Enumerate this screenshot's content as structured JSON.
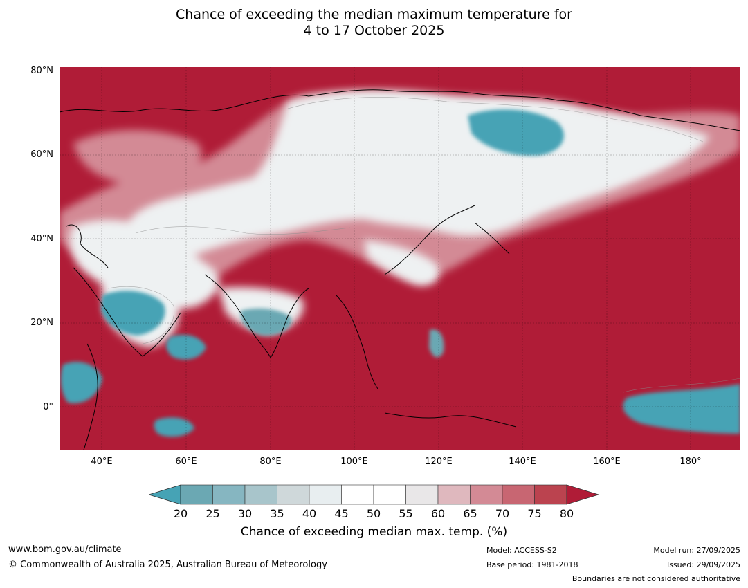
{
  "title": {
    "line1": "Chance of exceeding the median maximum temperature for",
    "line2": "4 to 17 October 2025"
  },
  "map": {
    "lat_labels": [
      "80°N",
      "60°N",
      "40°N",
      "20°N",
      "0°"
    ],
    "lon_labels": [
      "40°E",
      "60°E",
      "80°E",
      "100°E",
      "120°E",
      "140°E",
      "160°E",
      "180°"
    ],
    "regions": [
      {
        "name": "Siberia near-normal zone",
        "class": "50-55"
      },
      {
        "name": "Eastern Siberia cool anomaly",
        "class": "20-25"
      },
      {
        "name": "Arabian Peninsula cool anomaly",
        "class": "20-25"
      },
      {
        "name": "Southern India cool anomaly",
        "class": "25-30"
      },
      {
        "name": "Equatorial Pacific cool anomaly",
        "class": "20-25"
      },
      {
        "name": "Indian Ocean cool patch",
        "class": "20-25"
      },
      {
        "name": "East Africa cool patch",
        "class": "20-25"
      },
      {
        "name": "Philippines cool patch",
        "class": "25-30"
      }
    ]
  },
  "colorbar": {
    "ticks": [
      "20",
      "25",
      "30",
      "35",
      "40",
      "45",
      "50",
      "55",
      "60",
      "65",
      "70",
      "75",
      "80"
    ],
    "colors": [
      "#6ba8b3",
      "#86b6c1",
      "#a8c5cb",
      "#cfd8da",
      "#e8eef0",
      "#ffffff",
      "#ffffff",
      "#e9e7e8",
      "#dfb8be",
      "#d38a95",
      "#c86672",
      "#bb434f"
    ],
    "under_color": "#46a3b5",
    "over_color": "#b01c37",
    "label": "Chance of exceeding median max. temp. (%)"
  },
  "colors": {
    "hot": "#b01c37",
    "cool": "#46a3b5",
    "neutral": "#eef1f2"
  },
  "footer": {
    "website": "www.bom.gov.au/climate",
    "copyright": "© Commonwealth of Australia 2025, Australian Bureau of Meteorology",
    "model": "Model: ACCESS-S2",
    "base_period": "Base period: 1981-2018",
    "model_run": "Model run: 27/09/2025",
    "issued": "Issued: 29/09/2025",
    "disclaimer": "Boundaries are not considered authoritative"
  }
}
